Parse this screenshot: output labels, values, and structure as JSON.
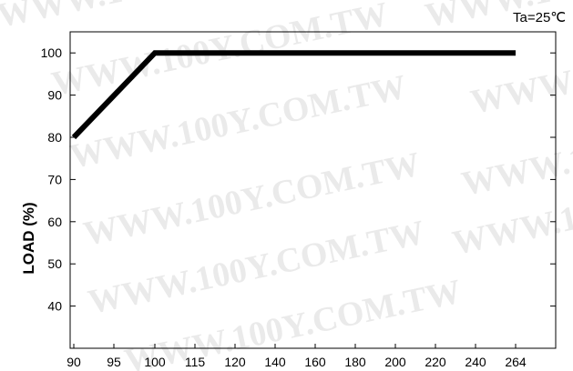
{
  "chart_data": {
    "type": "line",
    "annotation": "Ta=25℃",
    "ylabel": "LOAD (%)",
    "xlabel": "",
    "x_ticks": [
      "90",
      "95",
      "100",
      "115",
      "120",
      "140",
      "160",
      "180",
      "200",
      "220",
      "240",
      "264"
    ],
    "y_ticks": [
      40,
      50,
      60,
      70,
      80,
      90,
      100
    ],
    "ylim": [
      30,
      105
    ],
    "grid": false,
    "series": [
      {
        "points": [
          {
            "x": "90",
            "y": 80
          },
          {
            "x": "100",
            "y": 100
          },
          {
            "x": "264",
            "y": 100
          }
        ]
      }
    ]
  },
  "watermark": "WWW.100Y.COM.TW",
  "colors": {
    "line": "#000000",
    "axis": "#000000",
    "background": "#ffffff",
    "watermark": "#d9d9d9"
  }
}
